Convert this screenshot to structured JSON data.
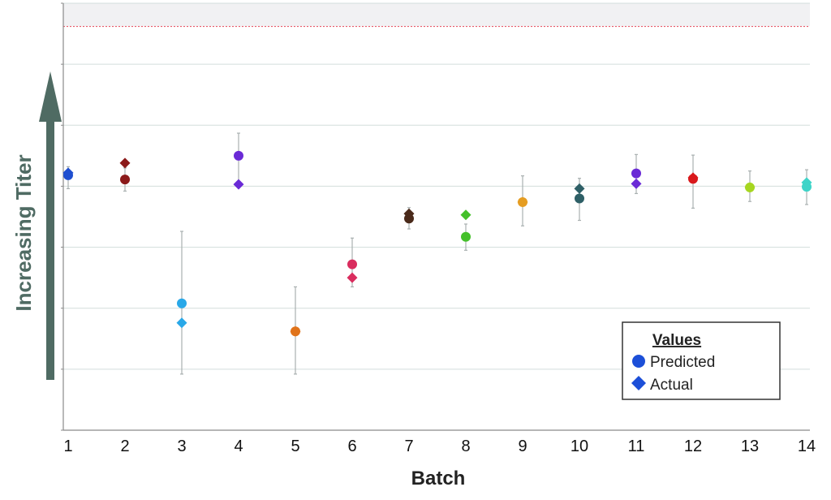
{
  "chart_data": {
    "type": "scatter",
    "title": "",
    "xlabel": "Batch",
    "ylabel": "Increasing Titer",
    "categories": [
      "1",
      "2",
      "3",
      "4",
      "5",
      "6",
      "7",
      "8",
      "9",
      "10",
      "11",
      "12",
      "13",
      "14"
    ],
    "ylim": [
      0,
      7
    ],
    "yticks": [
      0,
      1,
      2,
      3,
      4,
      5,
      6,
      7
    ],
    "grid": true,
    "threshold_line": 6.62,
    "shaded_band": [
      6.62,
      7
    ],
    "series": [
      {
        "name": "Predicted",
        "marker": "circle",
        "values": [
          4.18,
          4.11,
          2.08,
          4.5,
          1.62,
          2.72,
          3.47,
          3.17,
          3.74,
          3.8,
          4.21,
          4.12,
          3.98,
          3.99
        ],
        "error_low": [
          3.96,
          3.92,
          0.92,
          4.04,
          0.92,
          2.35,
          3.3,
          2.95,
          3.35,
          3.44,
          3.88,
          3.64,
          3.75,
          3.7
        ],
        "error_high": [
          4.32,
          4.3,
          3.26,
          4.87,
          2.35,
          3.15,
          3.65,
          3.38,
          4.17,
          4.13,
          4.52,
          4.51,
          4.25,
          4.27
        ]
      },
      {
        "name": "Actual",
        "marker": "diamond",
        "values": [
          4.22,
          4.38,
          1.76,
          4.03,
          1.62,
          2.5,
          3.55,
          3.53,
          3.74,
          3.96,
          4.04,
          4.14,
          3.98,
          4.06
        ],
        "error_low": [],
        "error_high": []
      }
    ],
    "point_colors": [
      "#1f4fd0",
      "#8b1a1a",
      "#29a8e8",
      "#6a2ad6",
      "#e0731a",
      "#d92d5e",
      "#4a2a1a",
      "#44c02a",
      "#e59d22",
      "#2e5f66",
      "#6a2ad6",
      "#d9191c",
      "#a6d620",
      "#3fd4c8"
    ],
    "legend": {
      "title": "Values",
      "entries": [
        "Predicted",
        "Actual"
      ],
      "legend_color": "#1c4fd8",
      "position": "bottom-right"
    }
  }
}
